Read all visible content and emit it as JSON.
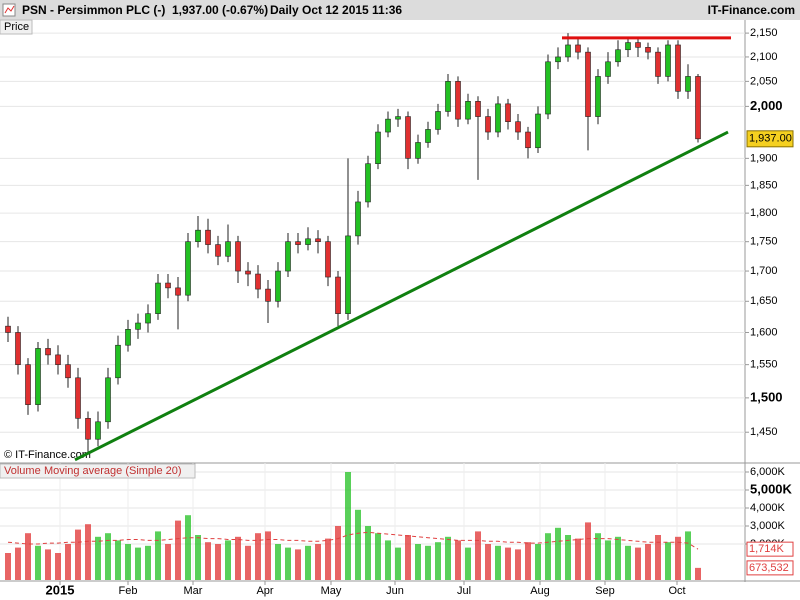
{
  "header": {
    "symbol": "PSN - Persimmon PLC (-)",
    "quote": "1,937.00 (-0.67%)",
    "period": "Daily",
    "datetime": "Oct 12 2015 11:36",
    "brand": "IT-Finance.com"
  },
  "chart_data": [
    {
      "type": "candlestick",
      "panel_label": "Price",
      "watermark": "© IT-Finance.com",
      "up_color": "#22c022",
      "down_color": "#e03030",
      "open": [
        1610,
        1600,
        1550,
        1490,
        1575,
        1565,
        1550,
        1530,
        1470,
        1440,
        1465,
        1530,
        1580,
        1605,
        1615,
        1630,
        1680,
        1672,
        1660,
        1750,
        1770,
        1745,
        1725,
        1750,
        1700,
        1695,
        1670,
        1650,
        1700,
        1750,
        1745,
        1755,
        1750,
        1690,
        1630,
        1760,
        1820,
        1890,
        1950,
        1975,
        1980,
        1900,
        1930,
        1955,
        1990,
        2050,
        1975,
        2010,
        1980,
        1950,
        2005,
        1970,
        1950,
        1920,
        1985,
        2090,
        2100,
        2125,
        2110,
        1980,
        2060,
        2090,
        2115,
        2130,
        2120,
        2110,
        2060,
        2125,
        2030,
        2060
      ],
      "high": [
        1625,
        1610,
        1560,
        1585,
        1590,
        1580,
        1565,
        1545,
        1480,
        1480,
        1545,
        1595,
        1620,
        1630,
        1645,
        1695,
        1695,
        1690,
        1765,
        1795,
        1790,
        1760,
        1780,
        1760,
        1715,
        1710,
        1685,
        1715,
        1765,
        1765,
        1775,
        1770,
        1760,
        1700,
        1900,
        1840,
        1905,
        1965,
        1990,
        1995,
        1990,
        1945,
        1970,
        2005,
        2065,
        2060,
        2025,
        2020,
        1995,
        2020,
        2015,
        1985,
        1960,
        2000,
        2105,
        2120,
        2150,
        2140,
        2120,
        2075,
        2110,
        2135,
        2140,
        2140,
        2130,
        2120,
        2135,
        2135,
        2085,
        2065
      ],
      "low": [
        1585,
        1535,
        1475,
        1480,
        1550,
        1535,
        1515,
        1455,
        1420,
        1430,
        1455,
        1520,
        1570,
        1590,
        1600,
        1620,
        1655,
        1605,
        1650,
        1740,
        1730,
        1710,
        1715,
        1680,
        1675,
        1655,
        1615,
        1640,
        1690,
        1730,
        1735,
        1730,
        1675,
        1610,
        1620,
        1745,
        1810,
        1880,
        1940,
        1960,
        1880,
        1890,
        1920,
        1945,
        1980,
        1960,
        1965,
        1860,
        1935,
        1940,
        1955,
        1935,
        1900,
        1910,
        1975,
        2075,
        2090,
        2095,
        1915,
        1965,
        2045,
        2080,
        2100,
        2100,
        2095,
        2045,
        2050,
        2015,
        2015,
        1930
      ],
      "close": [
        1600,
        1550,
        1490,
        1575,
        1565,
        1550,
        1530,
        1470,
        1440,
        1465,
        1530,
        1580,
        1605,
        1615,
        1630,
        1680,
        1672,
        1660,
        1750,
        1770,
        1745,
        1725,
        1750,
        1700,
        1695,
        1670,
        1650,
        1700,
        1750,
        1745,
        1755,
        1750,
        1690,
        1630,
        1760,
        1820,
        1890,
        1950,
        1975,
        1980,
        1900,
        1930,
        1955,
        1990,
        2050,
        1975,
        2010,
        1980,
        1950,
        2005,
        1970,
        1950,
        1920,
        1985,
        2090,
        2100,
        2125,
        2110,
        1980,
        2060,
        2090,
        2115,
        2130,
        2120,
        2110,
        2060,
        2125,
        2030,
        2060,
        1937
      ],
      "last_value_label": "1,937.00",
      "last_value_color": "#f5d020",
      "xlim": [
        -0.8,
        73.7
      ],
      "ylim": [
        1408,
        2178
      ],
      "log_scale": true,
      "grid": true,
      "yticks": [
        {
          "value": 1450,
          "label": "1,450"
        },
        {
          "value": 1500,
          "label": "1,500"
        },
        {
          "value": 1550,
          "label": "1,550"
        },
        {
          "value": 1600,
          "label": "1,600"
        },
        {
          "value": 1650,
          "label": "1,650"
        },
        {
          "value": 1700,
          "label": "1,700"
        },
        {
          "value": 1750,
          "label": "1,750"
        },
        {
          "value": 1800,
          "label": "1,800"
        },
        {
          "value": 1850,
          "label": "1,850"
        },
        {
          "value": 1900,
          "label": "1,900"
        },
        {
          "value": 2000,
          "label": "2,000"
        },
        {
          "value": 2050,
          "label": "2,050"
        },
        {
          "value": 2100,
          "label": "2,100"
        },
        {
          "value": 2150,
          "label": "2,150"
        }
      ],
      "annotations": [
        {
          "color": "#e01010",
          "x": [
            55.4,
            72.3
          ],
          "y": [
            2140,
            2140
          ]
        },
        {
          "color": "#108010",
          "x": [
            6.7,
            72.0
          ],
          "y": [
            1411,
            1950
          ]
        }
      ]
    },
    {
      "type": "bar",
      "xlim": [
        -0.8,
        73.7
      ],
      "ylim": [
        0,
        6500000
      ],
      "grid": true,
      "yticks": [
        {
          "value": 2000000,
          "label": "2,000K"
        },
        {
          "value": 3000000,
          "label": "3,000K"
        },
        {
          "value": 4000000,
          "label": "4,000K"
        },
        {
          "value": 5000000,
          "label": "5,000K"
        },
        {
          "value": 6000000,
          "label": "6,000K"
        }
      ],
      "xticks": [
        {
          "value": 5.2,
          "label": "2015"
        },
        {
          "value": 12,
          "label": "Feb"
        },
        {
          "value": 18.5,
          "label": "Mar"
        },
        {
          "value": 25.7,
          "label": "Apr"
        },
        {
          "value": 32.3,
          "label": "May"
        },
        {
          "value": 38.7,
          "label": "Jun"
        },
        {
          "value": 45.6,
          "label": "Jul"
        },
        {
          "value": 53.2,
          "label": "Aug"
        },
        {
          "value": 59.7,
          "label": "Sep"
        },
        {
          "value": 66.9,
          "label": "Oct"
        }
      ],
      "series": [
        {
          "name": "Volume",
          "color": "#555555",
          "values": [
            1500000,
            1800000,
            2600000,
            1900000,
            1700000,
            1500000,
            2000000,
            2800000,
            3100000,
            2400000,
            2600000,
            2200000,
            2000000,
            1800000,
            1900000,
            2700000,
            2000000,
            3300000,
            3600000,
            2500000,
            2100000,
            2000000,
            2200000,
            2400000,
            1900000,
            2600000,
            2700000,
            2000000,
            1800000,
            1700000,
            1900000,
            2000000,
            2300000,
            3000000,
            6000000,
            3900000,
            3000000,
            2600000,
            2200000,
            1800000,
            2500000,
            2000000,
            1900000,
            2100000,
            2400000,
            2200000,
            1800000,
            2700000,
            2000000,
            1900000,
            1800000,
            1700000,
            2100000,
            2000000,
            2600000,
            2900000,
            2500000,
            2300000,
            3200000,
            2600000,
            2200000,
            2400000,
            1900000,
            1800000,
            2000000,
            2500000,
            2100000,
            2400000,
            2700000,
            673532
          ],
          "last_value_label": "673,532"
        },
        {
          "name": "Moving average (Simple 20)",
          "color": "#e04040",
          "values": [
            2100000,
            2050000,
            2000000,
            2000000,
            2050000,
            2050000,
            2100000,
            2100000,
            2150000,
            2150000,
            2200000,
            2200000,
            2250000,
            2250000,
            2200000,
            2200000,
            2250000,
            2300000,
            2350000,
            2350000,
            2300000,
            2300000,
            2250000,
            2250000,
            2200000,
            2200000,
            2250000,
            2250000,
            2200000,
            2200000,
            2150000,
            2150000,
            2200000,
            2300000,
            2500000,
            2600000,
            2650000,
            2600000,
            2550000,
            2500000,
            2450000,
            2400000,
            2350000,
            2300000,
            2250000,
            2200000,
            2200000,
            2200000,
            2150000,
            2150000,
            2100000,
            2100000,
            2050000,
            2050000,
            2100000,
            2150000,
            2200000,
            2250000,
            2300000,
            2300000,
            2300000,
            2250000,
            2200000,
            2150000,
            2100000,
            2100000,
            2100000,
            2100000,
            2050000,
            1714000
          ],
          "last_value_label": "1,714K"
        }
      ]
    }
  ]
}
